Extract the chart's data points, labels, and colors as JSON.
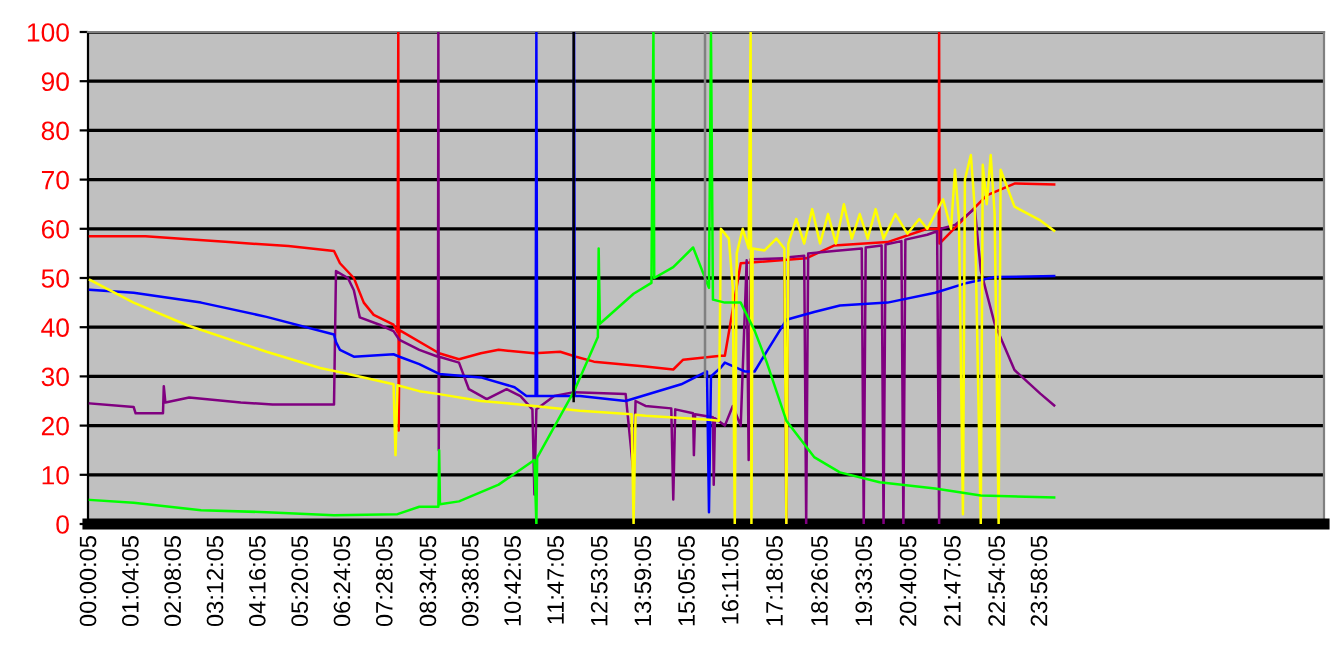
{
  "chart_data": {
    "type": "line",
    "grid": "y",
    "marker": "none",
    "line_style": "solid",
    "xlim": [
      -0.05,
      31.1
    ],
    "ylim": [
      0,
      100
    ],
    "yticks": [
      0,
      10,
      20,
      30,
      40,
      50,
      60,
      70,
      80,
      90,
      100
    ],
    "xticks": [
      {
        "value": 0.00139,
        "label": "00:00:05"
      },
      {
        "value": 1.06806,
        "label": "01:04:05"
      },
      {
        "value": 2.13472,
        "label": "02:08:05"
      },
      {
        "value": 3.20139,
        "label": "03:12:05"
      },
      {
        "value": 4.26806,
        "label": "04:16:05"
      },
      {
        "value": 5.33472,
        "label": "05:20:05"
      },
      {
        "value": 6.40139,
        "label": "06:24:05"
      },
      {
        "value": 7.46806,
        "label": "07:28:05"
      },
      {
        "value": 8.56806,
        "label": "08:34:05"
      },
      {
        "value": 9.63472,
        "label": "09:38:05"
      },
      {
        "value": 10.70139,
        "label": "10:42:05"
      },
      {
        "value": 11.78472,
        "label": "11:47:05"
      },
      {
        "value": 12.88472,
        "label": "12:53:05"
      },
      {
        "value": 13.98472,
        "label": "13:59:05"
      },
      {
        "value": 15.08472,
        "label": "15:05:05"
      },
      {
        "value": 16.18472,
        "label": "16:11:05"
      },
      {
        "value": 17.30139,
        "label": "17:18:05"
      },
      {
        "value": 18.43472,
        "label": "18:26:05"
      },
      {
        "value": 19.55139,
        "label": "19:33:05"
      },
      {
        "value": 20.66806,
        "label": "20:40:05"
      },
      {
        "value": 21.78472,
        "label": "21:47:05"
      },
      {
        "value": 22.90139,
        "label": "22:54:05"
      },
      {
        "value": 23.96806,
        "label": "23:58:05"
      }
    ],
    "series": [
      {
        "color": "#ff0000",
        "x": [
          0,
          1.4,
          2.3,
          3.5,
          5,
          6.15,
          6.3,
          6.65,
          6.9,
          7.15,
          7.65,
          7.75,
          7.77,
          7.78,
          7.8,
          8.8,
          9.3,
          9.85,
          10.3,
          11.2,
          11.85,
          12.25,
          12.7,
          14.0,
          14.7,
          14.95,
          15.9,
          16.0,
          16.4,
          18.05,
          18.75,
          20.1,
          21.1,
          21.39,
          21.4,
          21.41,
          22.1,
          22.6,
          23.3,
          24.3
        ],
        "values": [
          58.5,
          58.5,
          58,
          57.3,
          56.5,
          55.5,
          53,
          50,
          45,
          42.5,
          40.5,
          39,
          100,
          19,
          39.4,
          34.7,
          33.5,
          34.7,
          35.4,
          34.7,
          35,
          34,
          33,
          32,
          31.4,
          33.4,
          34.2,
          34.2,
          53,
          54,
          56.6,
          57.3,
          60,
          60,
          100,
          57,
          62.7,
          66.8,
          69.2,
          69
        ]
      },
      {
        "color": "#800080",
        "x": [
          0,
          1.1,
          1.15,
          1.84,
          1.86,
          1.9,
          2.5,
          3.8,
          4.6,
          6.15,
          6.2,
          6.5,
          6.65,
          6.8,
          7.3,
          7.65,
          7.75,
          7.8,
          8.3,
          8.77,
          8.78,
          8.79,
          8.8,
          9.3,
          9.55,
          10.0,
          10.5,
          10.85,
          11.15,
          11.2,
          11.25,
          11.7,
          12.2,
          13.5,
          13.7,
          13.75,
          14.0,
          14.65,
          14.7,
          14.75,
          15.2,
          15.22,
          15.25,
          15.7,
          15.72,
          15.75,
          16.0,
          16.2,
          16.4,
          16.55,
          16.6,
          16.65,
          17.5,
          17.55,
          17.6,
          18.0,
          18.05,
          18.1,
          18.75,
          19.45,
          19.5,
          19.55,
          19.95,
          20.0,
          20.05,
          20.45,
          20.5,
          20.55,
          21.1,
          21.35,
          21.4,
          21.45,
          21.8,
          22.3,
          22.45,
          22.8,
          23.3,
          23.95,
          24.3
        ],
        "values": [
          24.5,
          23.8,
          22.5,
          22.5,
          28,
          24.7,
          25.7,
          24.7,
          24.3,
          24.3,
          51.4,
          50,
          47.5,
          42,
          40.5,
          39.2,
          38,
          37.4,
          35.4,
          34,
          100,
          15,
          34,
          32.8,
          27.4,
          25.4,
          27.4,
          26,
          23.3,
          6,
          23.3,
          26,
          26.8,
          26.4,
          10,
          25,
          24,
          23.5,
          5,
          23.3,
          22.5,
          14,
          22.3,
          21.7,
          8,
          21.5,
          20,
          24,
          20,
          53.6,
          13,
          53.8,
          54,
          0,
          54.2,
          54.5,
          0,
          55,
          55.5,
          56,
          0,
          56.2,
          56.6,
          0,
          56.8,
          57.5,
          0,
          57.8,
          58.8,
          59.5,
          0,
          60,
          60.8,
          64.1,
          51.5,
          40.7,
          31.3,
          26.5,
          24.1
        ]
      },
      {
        "color": "#0000ff",
        "x": [
          0,
          1.1,
          2.8,
          4.45,
          6.15,
          6.2,
          6.3,
          6.65,
          7.65,
          7.8,
          8.3,
          8.8,
          9.85,
          10.7,
          11.0,
          11.23,
          11.25,
          11.27,
          12.18,
          12.2,
          12.22,
          12.35,
          13.5,
          14.9,
          15.55,
          15.6,
          15.65,
          15.9,
          16.0,
          16.5,
          16.75,
          17.05,
          17.55,
          18.25,
          18.9,
          20.1,
          21.3,
          22.1,
          22.8,
          24.3
        ],
        "values": [
          47.6,
          47,
          45,
          42.1,
          38.5,
          37,
          35.4,
          34,
          34.5,
          34,
          32.5,
          30.5,
          29.8,
          27.8,
          26,
          26,
          100,
          26,
          26,
          100,
          26,
          26,
          25,
          28.4,
          31,
          2.4,
          30,
          31.8,
          32.8,
          31,
          31,
          35,
          41.5,
          43.1,
          44.4,
          45,
          47,
          49,
          50.2,
          50.4
        ]
      },
      {
        "color": "#ffff00",
        "x": [
          0,
          1.1,
          2.45,
          4.45,
          5.8,
          6.45,
          7.65,
          7.7,
          7.75,
          8.3,
          8.8,
          9.85,
          10.7,
          12.35,
          13.65,
          13.7,
          13.75,
          14.0,
          15.6,
          15.85,
          15.9,
          16.1,
          16.2,
          16.25,
          16.3,
          16.45,
          16.6,
          16.65,
          16.67,
          16.7,
          17.0,
          17.3,
          17.5,
          17.55,
          17.6,
          17.8,
          18.0,
          18.2,
          18.4,
          18.6,
          18.8,
          19.0,
          19.2,
          19.4,
          19.6,
          19.8,
          20.0,
          20.3,
          20.6,
          20.9,
          21.1,
          21.5,
          21.7,
          21.8,
          21.9,
          22.0,
          22.05,
          22.2,
          22.3,
          22.45,
          22.5,
          22.6,
          22.7,
          22.8,
          22.9,
          22.95,
          23.3,
          23.95,
          24.3
        ],
        "values": [
          49.6,
          45,
          40.4,
          35,
          31.7,
          30.6,
          28.4,
          14,
          28.2,
          27,
          26.4,
          25,
          24.4,
          23,
          22.3,
          0,
          22.2,
          22,
          21.2,
          21,
          60,
          58,
          48,
          0,
          55,
          60,
          56,
          100,
          0,
          56,
          55.6,
          58,
          56,
          0,
          57,
          62,
          57,
          64,
          57,
          63,
          57,
          65,
          58,
          63,
          58,
          64,
          58,
          63,
          59,
          62,
          60,
          66,
          60,
          72,
          62,
          2,
          70,
          75,
          64,
          0,
          73,
          65,
          75,
          63,
          0,
          72,
          64.5,
          61.7,
          59.6
        ]
      },
      {
        "color": "#00ff00",
        "x": [
          0,
          1.1,
          2.8,
          4.45,
          6.15,
          7.75,
          8.3,
          8.78,
          8.8,
          8.82,
          9.3,
          10.3,
          11.2,
          11.25,
          11.27,
          12.2,
          12.8,
          12.82,
          12.85,
          13.7,
          14.15,
          14.2,
          14.22,
          14.7,
          15.2,
          15.6,
          15.65,
          15.7,
          16.0,
          16.4,
          16.75,
          17.05,
          17.55,
          18.25,
          18.9,
          19.9,
          21.3,
          22.45,
          24.3
        ],
        "values": [
          4.9,
          4.3,
          2.8,
          2.4,
          1.8,
          2,
          3.5,
          3.5,
          15,
          4,
          4.6,
          8,
          13,
          0,
          13.5,
          27,
          38,
          56,
          40.7,
          46.8,
          49,
          100,
          50,
          52.2,
          56.2,
          48,
          100,
          45.6,
          45,
          45,
          39.3,
          33,
          21,
          13.6,
          10.5,
          8.5,
          7.2,
          5.8,
          5.4
        ]
      },
      {
        "color": "#000000",
        "x": [
          12.19,
          12.19
        ],
        "values": [
          25,
          100
        ]
      },
      {
        "color": "#808080",
        "x": [
          15.5,
          15.5
        ],
        "values": [
          30,
          100
        ]
      }
    ]
  }
}
